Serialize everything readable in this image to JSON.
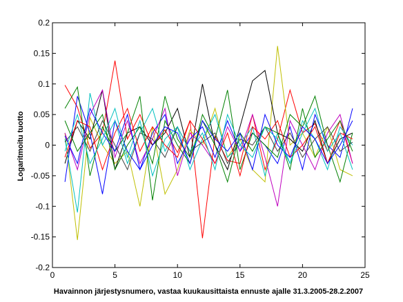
{
  "chart_data": {
    "type": "line",
    "title": "",
    "xlabel": "Havainnon järjestysnumero, vastaa kuukausittaista ennuste ajalle 31.3.2005-28.2.2007",
    "ylabel": "Logaritmoitu tuotto",
    "xlim": [
      0,
      25
    ],
    "ylim": [
      -0.2,
      0.2
    ],
    "xticks": [
      "0",
      "5",
      "10",
      "15",
      "20",
      "25"
    ],
    "yticks": [
      "-0.2",
      "-0.15",
      "-0.1",
      "-0.05",
      "0",
      "0.05",
      "0.1",
      "0.15",
      "0.2"
    ],
    "grid": false,
    "legend": "none",
    "x": [
      1,
      2,
      3,
      4,
      5,
      6,
      7,
      8,
      9,
      10,
      11,
      12,
      13,
      14,
      15,
      16,
      17,
      18,
      19,
      20,
      21,
      22,
      23,
      24
    ],
    "series": [
      {
        "color": "#ff0000",
        "values": [
          0.098,
          0.062,
          -0.005,
          0.02,
          0.138,
          0.01,
          0.05,
          0.0,
          0.025,
          -0.012,
          0.04,
          -0.152,
          0.015,
          -0.025,
          -0.03,
          0.05,
          -0.04,
          0.01,
          0.09,
          0.02,
          0.035,
          -0.01,
          0.04,
          -0.03
        ]
      },
      {
        "color": "#bfbf00",
        "values": [
          0.02,
          -0.155,
          0.045,
          0.0,
          -0.03,
          -0.01,
          -0.1,
          0.03,
          -0.08,
          -0.04,
          0.025,
          0.0,
          0.06,
          -0.02,
          0.01,
          -0.04,
          -0.06,
          0.162,
          0.0,
          0.02,
          -0.02,
          0.03,
          -0.04,
          -0.05
        ]
      },
      {
        "color": "#000000",
        "values": [
          -0.03,
          0.04,
          0.01,
          0.09,
          -0.04,
          0.02,
          0.03,
          0.0,
          0.02,
          0.06,
          -0.02,
          0.1,
          0.0,
          -0.04,
          0.03,
          0.105,
          0.122,
          0.02,
          0.01,
          -0.01,
          0.04,
          -0.03,
          0.01,
          0.02
        ]
      },
      {
        "color": "#0000ff",
        "values": [
          -0.06,
          0.08,
          0.02,
          -0.08,
          0.04,
          -0.01,
          -0.04,
          0.02,
          0.05,
          -0.03,
          0.01,
          0.03,
          -0.02,
          0.04,
          -0.01,
          0.02,
          0.0,
          -0.03,
          0.03,
          -0.04,
          0.05,
          0.0,
          -0.02,
          0.06
        ]
      },
      {
        "color": "#00bfbf",
        "values": [
          0.01,
          -0.11,
          0.085,
          0.0,
          0.04,
          -0.03,
          0.02,
          0.06,
          -0.01,
          0.03,
          -0.04,
          0.01,
          0.05,
          -0.02,
          0.0,
          0.03,
          -0.05,
          0.02,
          -0.03,
          0.04,
          0.01,
          -0.04,
          0.03,
          0.0
        ]
      },
      {
        "color": "#008000",
        "values": [
          0.06,
          0.095,
          -0.05,
          0.03,
          -0.01,
          0.02,
          0.08,
          -0.09,
          0.04,
          0.0,
          -0.03,
          0.05,
          0.01,
          0.09,
          -0.04,
          0.02,
          0.0,
          -0.02,
          0.05,
          0.03,
          0.08,
          0.0,
          -0.06,
          0.02
        ]
      },
      {
        "color": "#bf00bf",
        "values": [
          0.02,
          -0.04,
          0.05,
          0.09,
          -0.02,
          0.04,
          -0.03,
          0.01,
          0.06,
          -0.05,
          0.02,
          0.0,
          -0.03,
          0.03,
          -0.01,
          0.05,
          -0.02,
          -0.1,
          0.04,
          0.0,
          -0.04,
          0.02,
          0.05,
          -0.03
        ]
      },
      {
        "color": "#404040",
        "values": [
          0.005,
          0.03,
          -0.01,
          0.04,
          0.0,
          -0.04,
          0.02,
          0.01,
          -0.02,
          0.03,
          -0.01,
          0.005,
          0.02,
          -0.03,
          0.01,
          0.0,
          0.03,
          -0.01,
          0.02,
          -0.02,
          0.01,
          0.03,
          -0.01,
          0.005
        ]
      },
      {
        "color": "#ff0000",
        "values": [
          -0.02,
          0.04,
          0.03,
          -0.04,
          0.02,
          0.06,
          -0.01,
          0.03,
          0.0,
          -0.02,
          0.04,
          0.01,
          -0.03,
          0.02,
          -0.05,
          0.03,
          0.01,
          0.04,
          -0.02,
          0.0,
          0.03,
          -0.03,
          0.02,
          0.01
        ]
      },
      {
        "color": "#008000",
        "values": [
          0.04,
          -0.01,
          0.02,
          0.05,
          -0.04,
          0.0,
          0.03,
          -0.03,
          0.08,
          0.01,
          -0.02,
          0.04,
          0.0,
          -0.06,
          0.02,
          -0.01,
          0.03,
          0.02,
          -0.04,
          0.06,
          -0.02,
          0.01,
          0.04,
          -0.01
        ]
      },
      {
        "color": "#0000ff",
        "values": [
          0.015,
          -0.03,
          0.06,
          0.02,
          -0.01,
          0.05,
          -0.04,
          0.0,
          0.03,
          0.02,
          -0.03,
          0.04,
          0.01,
          -0.01,
          0.02,
          -0.04,
          0.05,
          0.0,
          -0.02,
          0.03,
          0.01,
          -0.03,
          0.0,
          0.04
        ]
      },
      {
        "color": "#00bfbf",
        "values": [
          -0.01,
          0.05,
          -0.03,
          0.01,
          0.06,
          -0.02,
          0.04,
          -0.05,
          0.01,
          0.03,
          -0.01,
          0.02,
          -0.04,
          0.05,
          0.0,
          -0.02,
          0.03,
          0.01,
          -0.03,
          0.02,
          0.06,
          -0.01,
          0.02,
          -0.04
        ]
      }
    ]
  }
}
